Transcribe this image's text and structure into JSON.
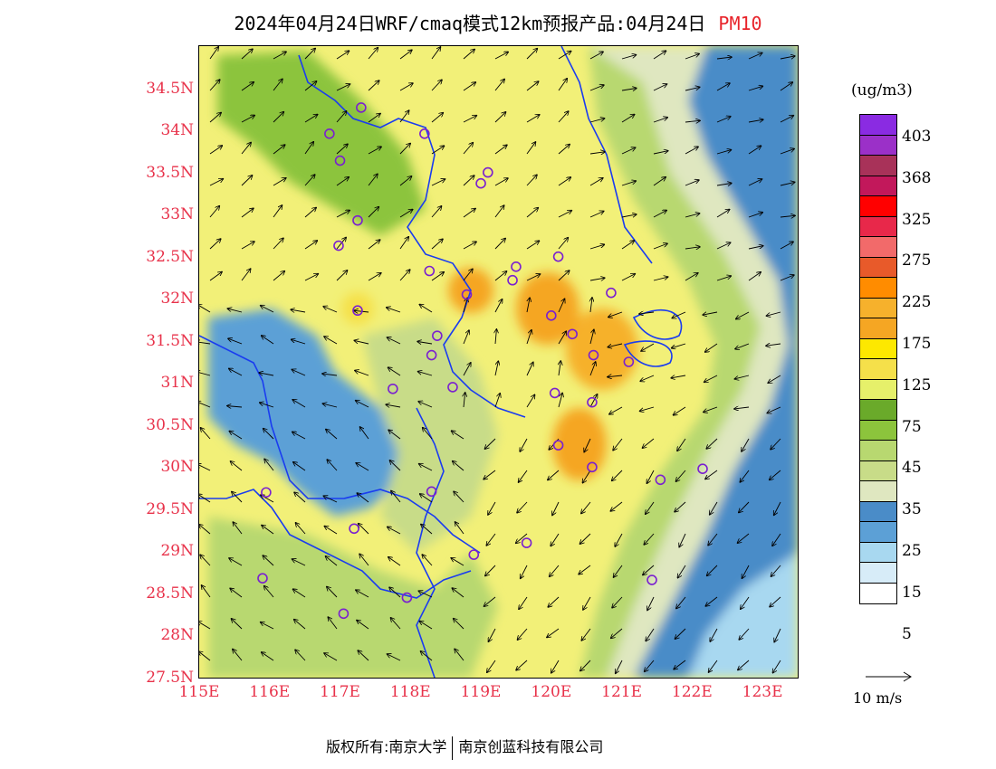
{
  "title": {
    "main": "2024年04月24日WRF/cmaq模式12km预报产品:04月24日",
    "parameter": "PM10"
  },
  "axes": {
    "lat_labels": [
      "34.5N",
      "34N",
      "33.5N",
      "33N",
      "32.5N",
      "32N",
      "31.5N",
      "31N",
      "30.5N",
      "30N",
      "29.5N",
      "29N",
      "28.5N",
      "28N",
      "27.5N"
    ],
    "lat_values": [
      34.5,
      34,
      33.5,
      33,
      32.5,
      32,
      31.5,
      31,
      30.5,
      30,
      29.5,
      29,
      28.5,
      28,
      27.5
    ],
    "lon_labels": [
      "115E",
      "116E",
      "117E",
      "118E",
      "119E",
      "120E",
      "121E",
      "122E",
      "123E"
    ],
    "lon_values": [
      115,
      116,
      117,
      118,
      119,
      120,
      121,
      122,
      123
    ],
    "extent": {
      "lon_min": 115,
      "lon_max": 123.5,
      "lat_min": 27.5,
      "lat_max": 35.0
    }
  },
  "legend": {
    "unit": "(ug/m3)",
    "tick_labels": [
      "403",
      "368",
      "325",
      "275",
      "225",
      "175",
      "125",
      "75",
      "45",
      "35",
      "25",
      "15",
      "5"
    ],
    "swatch_colors": [
      "#8a2be2",
      "#9b30c8",
      "#a83259",
      "#c2185b",
      "#ff0000",
      "#e8284a",
      "#f26a6a",
      "#e85a2a",
      "#ff8c00",
      "#f6b12c",
      "#f5a623",
      "#fde800",
      "#f5e04a",
      "#e6f06a",
      "#6aaa2a",
      "#8cc43c",
      "#b8d870",
      "#c8dc88",
      "#dfe7c0",
      "#4a8cc8",
      "#5ca0d6",
      "#a8d8f0",
      "#d7ecf8",
      "#ffffff"
    ]
  },
  "wind_key": {
    "label": "10 m/s"
  },
  "footer": {
    "copyright": "版权所有:南京大学",
    "company": "南京创蓝科技有限公司"
  },
  "colors": {
    "axis_label": "#e8324a",
    "param": "#e8232a",
    "boundary": "#1a3cf0"
  },
  "stations": [
    {
      "lon": 117.3,
      "lat": 34.27
    },
    {
      "lon": 116.85,
      "lat": 33.96
    },
    {
      "lon": 118.2,
      "lat": 33.96
    },
    {
      "lon": 117.0,
      "lat": 33.64
    },
    {
      "lon": 119.1,
      "lat": 33.5
    },
    {
      "lon": 119.0,
      "lat": 33.37
    },
    {
      "lon": 117.25,
      "lat": 32.93
    },
    {
      "lon": 116.98,
      "lat": 32.63
    },
    {
      "lon": 120.1,
      "lat": 32.5
    },
    {
      "lon": 118.27,
      "lat": 32.33
    },
    {
      "lon": 119.5,
      "lat": 32.38
    },
    {
      "lon": 119.45,
      "lat": 32.22
    },
    {
      "lon": 118.8,
      "lat": 32.05
    },
    {
      "lon": 120.85,
      "lat": 32.07
    },
    {
      "lon": 117.25,
      "lat": 31.86
    },
    {
      "lon": 120.0,
      "lat": 31.8
    },
    {
      "lon": 118.38,
      "lat": 31.56
    },
    {
      "lon": 120.3,
      "lat": 31.58
    },
    {
      "lon": 118.3,
      "lat": 31.33
    },
    {
      "lon": 120.6,
      "lat": 31.33
    },
    {
      "lon": 121.1,
      "lat": 31.25
    },
    {
      "lon": 117.75,
      "lat": 30.93
    },
    {
      "lon": 118.6,
      "lat": 30.95
    },
    {
      "lon": 120.05,
      "lat": 30.88
    },
    {
      "lon": 120.58,
      "lat": 30.77
    },
    {
      "lon": 120.1,
      "lat": 30.26
    },
    {
      "lon": 120.58,
      "lat": 30.0
    },
    {
      "lon": 121.55,
      "lat": 29.85
    },
    {
      "lon": 122.15,
      "lat": 29.98
    },
    {
      "lon": 115.95,
      "lat": 29.7
    },
    {
      "lon": 118.3,
      "lat": 29.71
    },
    {
      "lon": 117.2,
      "lat": 29.27
    },
    {
      "lon": 119.65,
      "lat": 29.1
    },
    {
      "lon": 118.9,
      "lat": 28.96
    },
    {
      "lon": 115.9,
      "lat": 28.68
    },
    {
      "lon": 121.43,
      "lat": 28.66
    },
    {
      "lon": 117.95,
      "lat": 28.45
    },
    {
      "lon": 117.05,
      "lat": 28.26
    }
  ]
}
